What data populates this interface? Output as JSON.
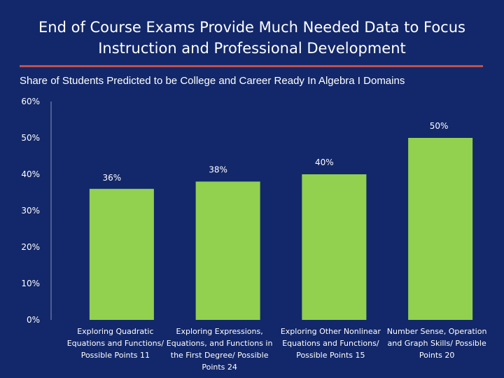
{
  "slide": {
    "title_lines": [
      "End of Course Exams Provide Much Needed Data to Focus",
      "Instruction and Professional Development"
    ],
    "accent_color": "#c0504d",
    "background_color": "#13286a"
  },
  "chart_data": {
    "type": "bar",
    "title": "Share of Students Predicted to be College and Career Ready In Algebra I Domains",
    "xlabel": "",
    "ylabel": "",
    "ylim": [
      0,
      60
    ],
    "yticks": [
      "0%",
      "10%",
      "20%",
      "30%",
      "40%",
      "50%",
      "60%"
    ],
    "grid": false,
    "bar_color": "#92d050",
    "categories": [
      [
        "Exploring Quadratic",
        "Equations and Functions/",
        "Possible Points 11"
      ],
      [
        "Exploring Expressions,",
        "Equations, and Functions in",
        "the First Degree/ Possible",
        "Points 24"
      ],
      [
        "Exploring Other Nonlinear",
        "Equations and Functions/",
        "Possible Points 15"
      ],
      [
        "Number Sense, Operation",
        "and Graph Skills/ Possible",
        "Points 20"
      ]
    ],
    "values": [
      36,
      38,
      40,
      50
    ],
    "data_labels": [
      "36%",
      "38%",
      "40%",
      "50%"
    ]
  }
}
